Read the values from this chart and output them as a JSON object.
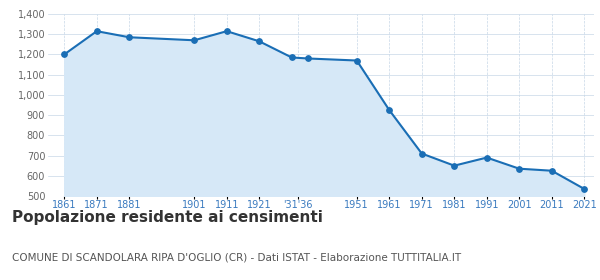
{
  "years": [
    1861,
    1871,
    1881,
    1901,
    1911,
    1921,
    1931,
    1936,
    1951,
    1961,
    1971,
    1981,
    1991,
    2001,
    2011,
    2021
  ],
  "tick_labels": [
    "1861",
    "1871",
    "1881",
    "1901",
    "1911",
    "1921",
    "'31'36",
    "1951",
    "1961",
    "1971",
    "1981",
    "1991",
    "2001",
    "2011",
    "2021"
  ],
  "tick_positions": [
    1861,
    1871,
    1881,
    1901,
    1911,
    1921,
    1933,
    1951,
    1961,
    1971,
    1981,
    1991,
    2001,
    2011,
    2021
  ],
  "population": [
    1200,
    1315,
    1285,
    1270,
    1315,
    1265,
    1185,
    1180,
    1170,
    925,
    710,
    650,
    690,
    635,
    625,
    535
  ],
  "ylim": [
    500,
    1400
  ],
  "yticks": [
    500,
    600,
    700,
    800,
    900,
    1000,
    1100,
    1200,
    1300,
    1400
  ],
  "line_color": "#1a6eb5",
  "fill_color": "#d6e8f7",
  "marker_color": "#1a6eb5",
  "background_color": "#ffffff",
  "grid_color_h": "#c8d8e8",
  "grid_color_v": "#c8d8e8",
  "title": "Popolazione residente ai censimenti",
  "subtitle": "COMUNE DI SCANDOLARA RIPA D'OGLIO (CR) - Dati ISTAT - Elaborazione TUTTITALIA.IT",
  "title_fontsize": 11,
  "subtitle_fontsize": 7.5,
  "tick_label_color": "#3a7abf",
  "ytick_label_color": "#666666",
  "xlim_left": 1856,
  "xlim_right": 2024
}
